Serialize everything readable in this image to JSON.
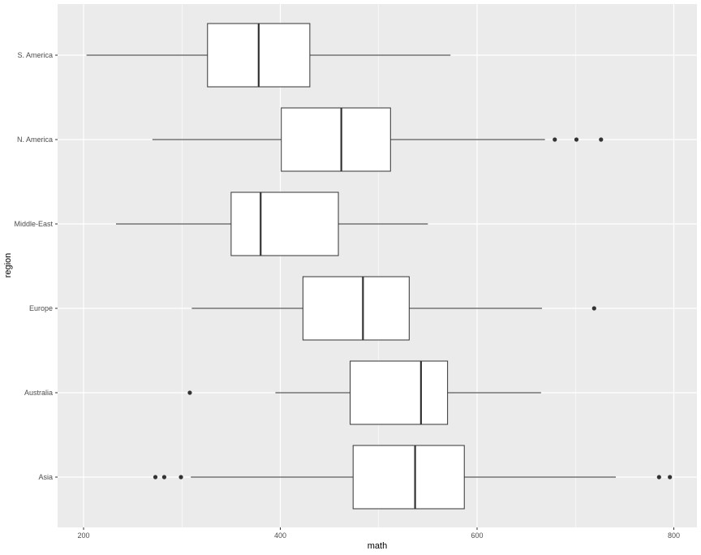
{
  "chart_data": {
    "type": "boxplot",
    "orientation": "horizontal",
    "xlabel": "math",
    "ylabel": "region",
    "xlim": [
      180,
      810
    ],
    "xticks": [
      200,
      400,
      600,
      800
    ],
    "grid": true,
    "legend": "none",
    "colors": {
      "panel": "#ebebeb",
      "grid_major": "#ffffff",
      "box_fill": "#ffffff",
      "box_stroke": "#333333",
      "outlier": "#333333"
    },
    "categories": [
      "S. America",
      "N. America",
      "Middle-East",
      "Europe",
      "Australia",
      "Asia"
    ],
    "boxes": [
      {
        "category": "S. America",
        "whisker_low": 203,
        "q1": 326,
        "median": 378,
        "q3": 430,
        "whisker_high": 573,
        "outliers": []
      },
      {
        "category": "N. America",
        "whisker_low": 270,
        "q1": 401,
        "median": 462,
        "q3": 512,
        "whisker_high": 669,
        "outliers": [
          679,
          701,
          726
        ]
      },
      {
        "category": "Middle-East",
        "whisker_low": 233,
        "q1": 350,
        "median": 380,
        "q3": 459,
        "whisker_high": 550,
        "outliers": []
      },
      {
        "category": "Europe",
        "whisker_low": 310,
        "q1": 423,
        "median": 484,
        "q3": 531,
        "whisker_high": 666,
        "outliers": [
          719
        ]
      },
      {
        "category": "Australia",
        "whisker_low": 395,
        "q1": 471,
        "median": 543,
        "q3": 570,
        "whisker_high": 665,
        "outliers": [
          308
        ]
      },
      {
        "category": "Asia",
        "whisker_low": 309,
        "q1": 474,
        "median": 537,
        "q3": 587,
        "whisker_high": 741,
        "outliers": [
          273,
          282,
          299,
          785,
          796
        ]
      }
    ]
  }
}
